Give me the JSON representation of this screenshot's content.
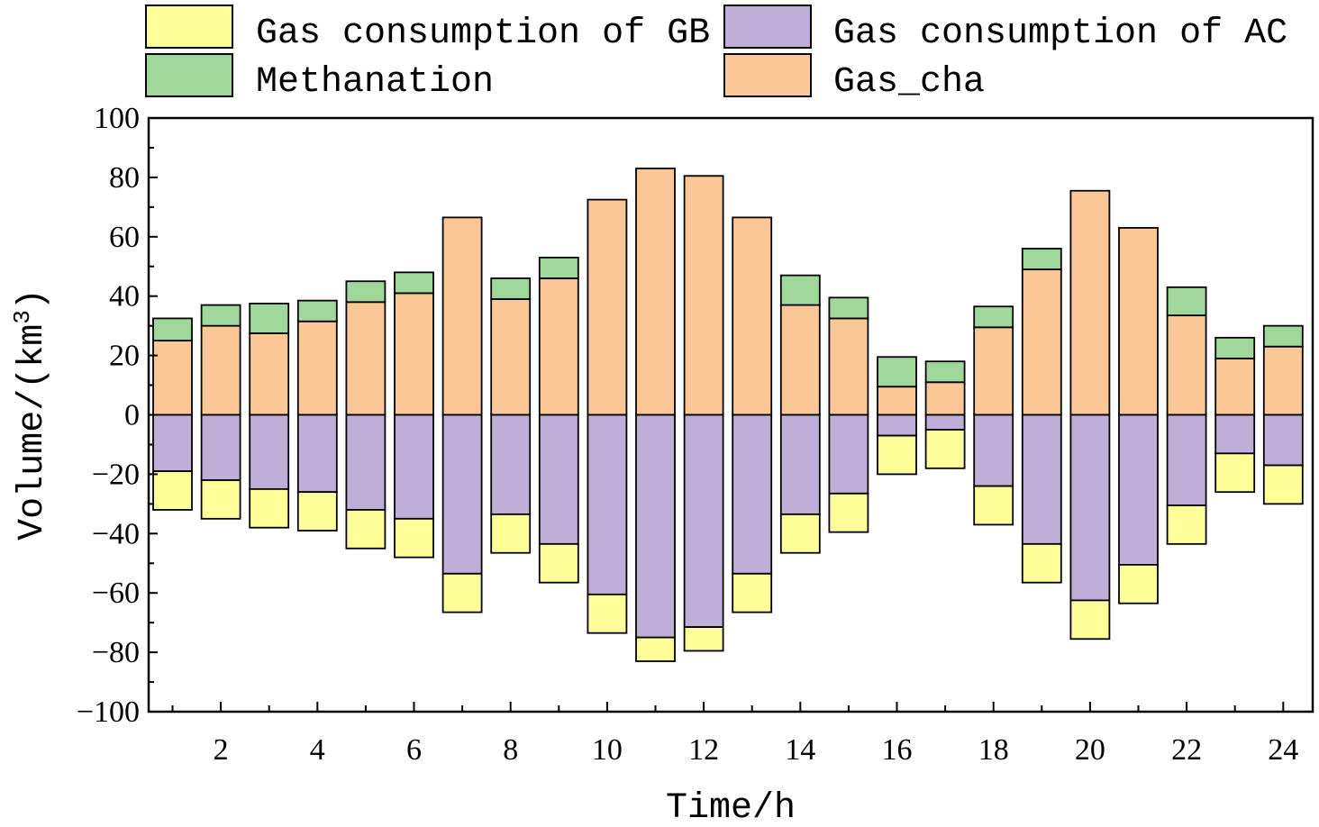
{
  "chart_data": {
    "type": "bar",
    "stacked": true,
    "x": [
      1,
      2,
      3,
      4,
      5,
      6,
      7,
      8,
      9,
      10,
      11,
      12,
      13,
      14,
      15,
      16,
      17,
      18,
      19,
      20,
      21,
      22,
      23,
      24
    ],
    "xticks": [
      "2",
      "4",
      "6",
      "8",
      "10",
      "12",
      "14",
      "16",
      "18",
      "20",
      "22",
      "24"
    ],
    "xlabel": "Time/h",
    "ylabel": "Volume/(km",
    "ylabel_sup": "3",
    "ylabel_end": ")",
    "ylim": [
      -100,
      100
    ],
    "yticks": [
      "−100",
      "−80",
      "−60",
      "−40",
      "−20",
      "0",
      "20",
      "40",
      "60",
      "80",
      "100"
    ],
    "legend_position": "top",
    "series": [
      {
        "name": "Gas consumption of GB",
        "color": "#ffff99",
        "values": [
          -13,
          -13,
          -13,
          -13,
          -13,
          -13,
          -13,
          -13,
          -13,
          -13,
          -8,
          -8,
          -13,
          -13,
          -13,
          -13,
          -13,
          -13,
          -13,
          -13,
          -13,
          -13,
          -13,
          -13
        ]
      },
      {
        "name": "Gas consumption of AC",
        "color": "#bfaed8",
        "values": [
          -19,
          -22,
          -25,
          -26,
          -32,
          -35,
          -53.5,
          -33.5,
          -43.5,
          -60.5,
          -75,
          -71.5,
          -53.5,
          -33.5,
          -26.5,
          -7,
          -5,
          -24,
          -43.5,
          -62.5,
          -50.5,
          -30.5,
          -13,
          -17
        ]
      },
      {
        "name": "Methanation",
        "color": "#a0d89c",
        "values": [
          7.5,
          7,
          10,
          7,
          7,
          7,
          0,
          7,
          7,
          0,
          0,
          0,
          0,
          10,
          7,
          10,
          7,
          7,
          7,
          0,
          0,
          9.5,
          7,
          7
        ]
      },
      {
        "name": "Gas_cha",
        "color": "#fbc796",
        "values": [
          25,
          30,
          27.5,
          31.5,
          38,
          41,
          66.5,
          39,
          46,
          72.5,
          83,
          80.5,
          66.5,
          37,
          32.5,
          9.5,
          11,
          29.5,
          49,
          75.5,
          63,
          33.5,
          19,
          23
        ]
      }
    ]
  },
  "legend": {
    "items": [
      {
        "label": "Gas consumption of GB",
        "color": "#ffff99"
      },
      {
        "label": "Gas consumption of AC",
        "color": "#bfaed8"
      },
      {
        "label": "Methanation",
        "color": "#a0d89c"
      },
      {
        "label": "Gas_cha",
        "color": "#fbc796"
      }
    ]
  }
}
